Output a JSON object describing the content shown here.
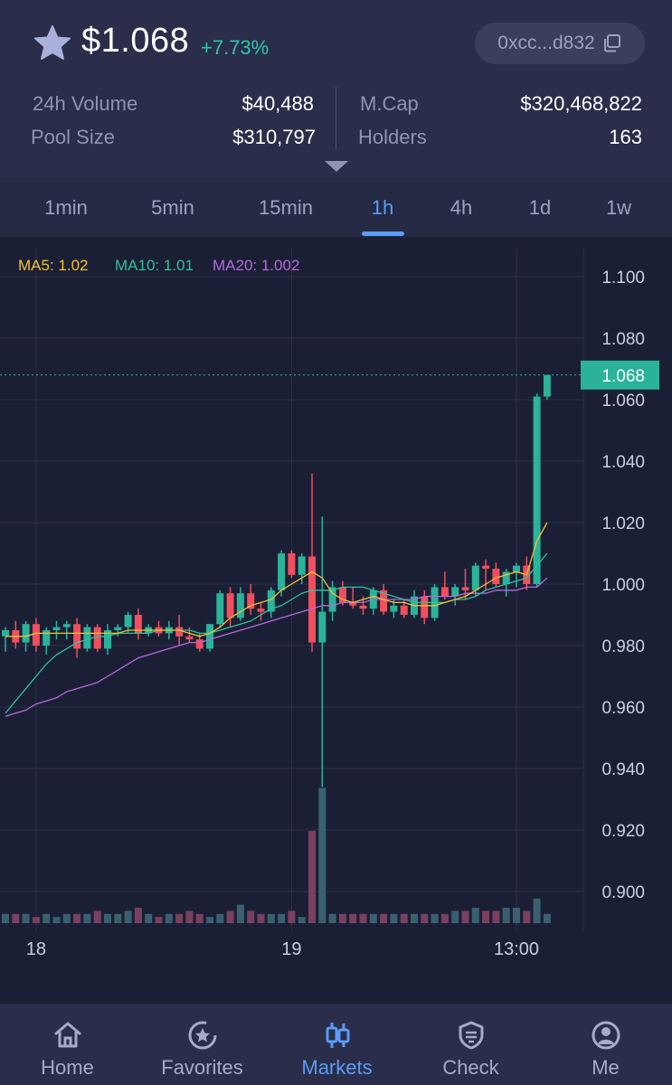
{
  "header": {
    "star_icon": "star-icon",
    "price": "$1.068",
    "change": "+7.73%",
    "address": "0xcc...d832",
    "copy_icon": "copy-icon"
  },
  "stats": {
    "volume_label": "24h Volume",
    "volume_value": "$40,488",
    "pool_label": "Pool Size",
    "pool_value": "$310,797",
    "mcap_label": "M.Cap",
    "mcap_value": "$320,468,822",
    "holders_label": "Holders",
    "holders_value": "163"
  },
  "tabs": [
    "1min",
    "5min",
    "15min",
    "1h",
    "4h",
    "1d",
    "1w"
  ],
  "active_tab": "1h",
  "colors": {
    "up": "#2ab39a",
    "down": "#f04f5e",
    "ma5": "#f2c232",
    "ma10": "#2ec29a",
    "ma20": "#b469dd",
    "accent": "#5b9cf5"
  },
  "chart_data": {
    "type": "candlestick",
    "interval": "1h",
    "ma_legend": [
      {
        "label": "MA5: 1.02",
        "color": "#f2c232"
      },
      {
        "label": "MA10: 1.01",
        "color": "#2ec29a"
      },
      {
        "label": "MA20: 1.002",
        "color": "#b469dd"
      }
    ],
    "y_ticks": [
      "1.100",
      "1.080",
      "1.060",
      "1.040",
      "1.020",
      "1.000",
      "0.980",
      "0.960",
      "0.940",
      "0.920",
      "0.900"
    ],
    "ylim": [
      0.89,
      1.1
    ],
    "last_price": "1.068",
    "x_ticks": [
      {
        "label": "18",
        "index": 3
      },
      {
        "label": "19",
        "index": 28
      },
      {
        "label": "13:00",
        "index": 50
      }
    ],
    "candles": [
      [
        0.983,
        0.986,
        0.978,
        0.985
      ],
      [
        0.985,
        0.988,
        0.979,
        0.981
      ],
      [
        0.981,
        0.988,
        0.978,
        0.987
      ],
      [
        0.987,
        0.989,
        0.978,
        0.98
      ],
      [
        0.98,
        0.986,
        0.977,
        0.985
      ],
      [
        0.985,
        0.988,
        0.982,
        0.986
      ],
      [
        0.986,
        0.988,
        0.982,
        0.987
      ],
      [
        0.987,
        0.989,
        0.976,
        0.979
      ],
      [
        0.979,
        0.987,
        0.978,
        0.986
      ],
      [
        0.986,
        0.987,
        0.978,
        0.979
      ],
      [
        0.979,
        0.987,
        0.977,
        0.985
      ],
      [
        0.985,
        0.987,
        0.983,
        0.986
      ],
      [
        0.986,
        0.991,
        0.984,
        0.99
      ],
      [
        0.99,
        0.992,
        0.982,
        0.984
      ],
      [
        0.984,
        0.987,
        0.983,
        0.986
      ],
      [
        0.986,
        0.988,
        0.983,
        0.984
      ],
      [
        0.984,
        0.988,
        0.982,
        0.986
      ],
      [
        0.986,
        0.99,
        0.98,
        0.983
      ],
      [
        0.983,
        0.986,
        0.981,
        0.982
      ],
      [
        0.982,
        0.984,
        0.978,
        0.979
      ],
      [
        0.979,
        0.987,
        0.978,
        0.987
      ],
      [
        0.987,
        0.998,
        0.986,
        0.997
      ],
      [
        0.997,
        0.999,
        0.986,
        0.989
      ],
      [
        0.989,
        0.999,
        0.988,
        0.997
      ],
      [
        0.997,
        1.0,
        0.99,
        0.992
      ],
      [
        0.992,
        0.994,
        0.988,
        0.991
      ],
      [
        0.991,
        0.999,
        0.989,
        0.998
      ],
      [
        0.998,
        1.011,
        0.996,
        1.01
      ],
      [
        1.01,
        1.011,
        1.002,
        1.003
      ],
      [
        1.003,
        1.01,
        1.0,
        1.009
      ],
      [
        1.009,
        1.036,
        0.978,
        0.981
      ],
      [
        0.981,
        1.022,
        0.934,
        0.991
      ],
      [
        0.991,
        1.001,
        0.988,
        0.999
      ],
      [
        0.999,
        1.001,
        0.993,
        0.994
      ],
      [
        0.994,
        0.999,
        0.992,
        0.993
      ],
      [
        0.993,
        0.996,
        0.99,
        0.992
      ],
      [
        0.992,
        0.999,
        0.99,
        0.998
      ],
      [
        0.998,
        1.0,
        0.99,
        0.991
      ],
      [
        0.991,
        0.995,
        0.989,
        0.993
      ],
      [
        0.993,
        0.995,
        0.989,
        0.99
      ],
      [
        0.99,
        0.998,
        0.989,
        0.996
      ],
      [
        0.996,
        0.998,
        0.987,
        0.989
      ],
      [
        0.989,
        1.0,
        0.988,
        0.999
      ],
      [
        0.999,
        1.004,
        0.995,
        0.996
      ],
      [
        0.996,
        1.0,
        0.993,
        0.999
      ],
      [
        0.999,
        1.005,
        0.995,
        0.998
      ],
      [
        0.998,
        1.007,
        0.996,
        1.006
      ],
      [
        1.006,
        1.008,
        0.998,
        1.005
      ],
      [
        1.005,
        1.007,
        0.999,
        1.0
      ],
      [
        1.0,
        1.005,
        0.996,
        1.004
      ],
      [
        1.004,
        1.007,
        0.999,
        1.006
      ],
      [
        1.006,
        1.009,
        0.998,
        1.0
      ],
      [
        1.0,
        1.062,
        0.999,
        1.061
      ],
      [
        1.061,
        1.068,
        1.06,
        1.068
      ]
    ],
    "ma5": [
      0.983,
      0.983,
      0.983,
      0.984,
      0.984,
      0.984,
      0.984,
      0.984,
      0.984,
      0.984,
      0.984,
      0.984,
      0.985,
      0.985,
      0.985,
      0.985,
      0.985,
      0.985,
      0.984,
      0.983,
      0.984,
      0.986,
      0.989,
      0.991,
      0.993,
      0.994,
      0.995,
      0.998,
      1.0,
      1.002,
      1.004,
      1.002,
      0.997,
      0.995,
      0.994,
      0.995,
      0.996,
      0.995,
      0.994,
      0.994,
      0.993,
      0.993,
      0.993,
      0.994,
      0.995,
      0.996,
      0.998,
      1.0,
      1.002,
      1.003,
      1.004,
      1.003,
      1.014,
      1.02
    ],
    "ma10": [
      0.958,
      0.962,
      0.966,
      0.97,
      0.974,
      0.977,
      0.979,
      0.981,
      0.982,
      0.983,
      0.983,
      0.984,
      0.984,
      0.984,
      0.984,
      0.985,
      0.985,
      0.985,
      0.985,
      0.984,
      0.984,
      0.985,
      0.986,
      0.987,
      0.988,
      0.99,
      0.992,
      0.993,
      0.995,
      0.997,
      0.998,
      0.998,
      0.998,
      0.999,
      0.999,
      0.999,
      0.998,
      0.997,
      0.996,
      0.995,
      0.994,
      0.994,
      0.994,
      0.994,
      0.995,
      0.995,
      0.996,
      0.998,
      0.999,
      1.0,
      1.001,
      1.002,
      1.006,
      1.01
    ],
    "ma20": [
      0.957,
      0.958,
      0.959,
      0.961,
      0.962,
      0.963,
      0.965,
      0.966,
      0.967,
      0.968,
      0.97,
      0.972,
      0.974,
      0.976,
      0.977,
      0.978,
      0.979,
      0.98,
      0.981,
      0.981,
      0.982,
      0.983,
      0.984,
      0.985,
      0.986,
      0.987,
      0.988,
      0.989,
      0.99,
      0.991,
      0.992,
      0.993,
      0.993,
      0.994,
      0.994,
      0.994,
      0.995,
      0.995,
      0.995,
      0.995,
      0.995,
      0.996,
      0.996,
      0.996,
      0.996,
      0.997,
      0.997,
      0.997,
      0.998,
      0.998,
      0.998,
      0.999,
      0.999,
      1.002
    ],
    "volumes": [
      3,
      3,
      3,
      2,
      3,
      2,
      3,
      3,
      3,
      4,
      3,
      3,
      4,
      5,
      3,
      2,
      3,
      3,
      4,
      3,
      2,
      3,
      4,
      6,
      4,
      3,
      3,
      3,
      4,
      2,
      30,
      44,
      3,
      3,
      3,
      3,
      3,
      3,
      3,
      3,
      3,
      3,
      3,
      3,
      4,
      4,
      5,
      4,
      4,
      5,
      5,
      4,
      8,
      3
    ]
  },
  "nav": {
    "items": [
      {
        "label": "Home",
        "icon": "home-icon"
      },
      {
        "label": "Favorites",
        "icon": "star-circle-icon"
      },
      {
        "label": "Markets",
        "icon": "candles-icon"
      },
      {
        "label": "Check",
        "icon": "shield-icon"
      },
      {
        "label": "Me",
        "icon": "user-icon"
      }
    ],
    "active": "Markets"
  }
}
